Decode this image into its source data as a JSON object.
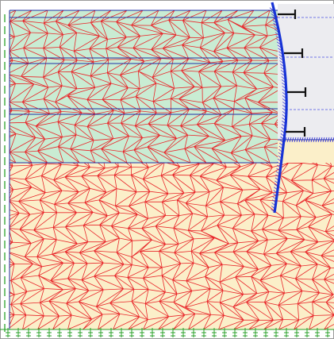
{
  "model": {
    "colors": {
      "canvas": "#ffffff",
      "excavated_zone": "#ececf0",
      "upper_soil": "#c9ecd3",
      "lower_soil": "#fbefc9",
      "mesh": "#e8262a",
      "layer_boundary": "#1f2fa6",
      "retaining_wall": "#1733d6",
      "anchor": "#111111",
      "anchor_line": "#6f76e6",
      "fixity_dashes": "#2aa12a",
      "interface_hatch": "#2b2bd6"
    },
    "layers": [
      {
        "id": "upper-soil-layer",
        "fill": "upper_soil"
      },
      {
        "id": "lower-soil-layer",
        "fill": "lower_soil"
      }
    ],
    "anchor_rows": 4,
    "mesh_style": "triangular finite-element mesh"
  }
}
